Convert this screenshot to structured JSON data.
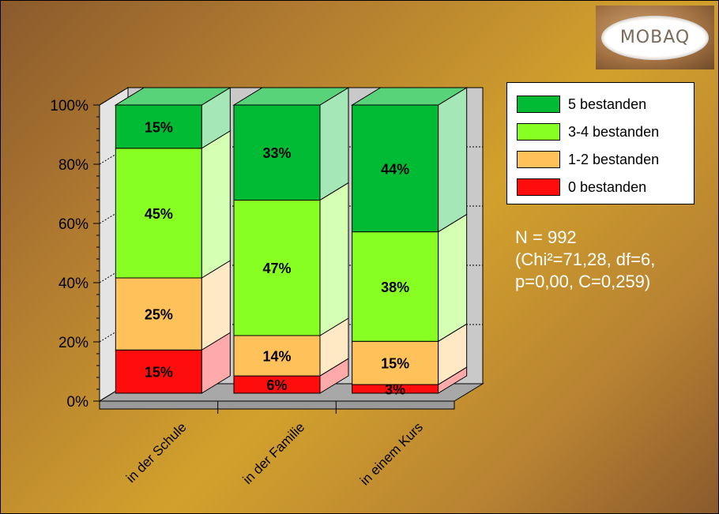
{
  "logo": {
    "text": "MOBAQ"
  },
  "stats": {
    "line1": "N = 992",
    "line2": "(Chi²=71,28, df=6,",
    "line3": "p=0,00, C=0,259)"
  },
  "colors": {
    "five": "#00bb33",
    "three_four": "#88ff22",
    "one_two": "#ffc15a",
    "zero": "#ff0c0c"
  },
  "chart_data": {
    "type": "bar",
    "stacked": true,
    "three_d": true,
    "categories": [
      "in der Schule",
      "in der Familie",
      "in einem Kurs"
    ],
    "series": [
      {
        "name": "0 bestanden",
        "values": [
          15,
          6,
          3
        ],
        "labels": [
          "15%",
          "6%",
          "3%"
        ]
      },
      {
        "name": "1-2 bestanden",
        "values": [
          25,
          14,
          15
        ],
        "labels": [
          "25%",
          "14%",
          "15%"
        ]
      },
      {
        "name": "3-4 bestanden",
        "values": [
          45,
          47,
          38
        ],
        "labels": [
          "45%",
          "47%",
          "38%"
        ]
      },
      {
        "name": "5 bestanden",
        "values": [
          15,
          33,
          44
        ],
        "labels": [
          "15%",
          "33%",
          "44%"
        ]
      }
    ],
    "ylim": [
      0,
      100
    ],
    "yticks": [
      "0%",
      "20%",
      "40%",
      "60%",
      "80%",
      "100%"
    ],
    "legend_position": "right",
    "grid": true
  }
}
